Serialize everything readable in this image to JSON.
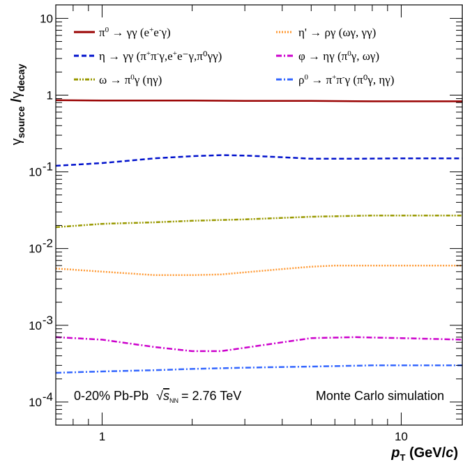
{
  "chart_data": {
    "type": "line",
    "xscale": "log",
    "yscale": "log",
    "xlim": [
      0.7,
      16
    ],
    "ylim": [
      5e-05,
      15
    ],
    "grid": false,
    "legend_placement": "top",
    "xlabel": {
      "main": "p",
      "sub": "T",
      "rest": " (GeV/",
      "italic": "c",
      "close": ")"
    },
    "ylabel": {
      "g1": "γ",
      "sub1": "source",
      "slash": " /",
      "g2": "γ",
      "sub2": "decay"
    },
    "x_ticks": [
      {
        "value": 1,
        "label": "1"
      },
      {
        "value": 10,
        "label": "10"
      }
    ],
    "y_ticks": [
      {
        "value": 10,
        "base": "10",
        "exp": ""
      },
      {
        "value": 1,
        "base": "1",
        "exp": ""
      },
      {
        "value": 0.1,
        "base": "10",
        "exp": "-1"
      },
      {
        "value": 0.01,
        "base": "10",
        "exp": "-2"
      },
      {
        "value": 0.001,
        "base": "10",
        "exp": "-3"
      },
      {
        "value": 0.0001,
        "base": "10",
        "exp": "-4"
      }
    ],
    "series": [
      {
        "name": "π⁰ → γγ (e⁺e⁻γ)",
        "color": "#990000",
        "dash": "solid",
        "x": [
          0.7,
          1,
          1.5,
          2,
          3,
          5,
          8,
          12,
          16
        ],
        "values": [
          0.86,
          0.85,
          0.85,
          0.85,
          0.84,
          0.84,
          0.83,
          0.83,
          0.83
        ]
      },
      {
        "name": "η → γγ (π⁺π⁻γ,e⁺e⁻γ,π⁰γγ)",
        "color": "#0011cc",
        "dash": "dashed",
        "x": [
          0.7,
          1,
          1.5,
          2,
          2.5,
          3,
          4,
          5,
          7,
          10,
          16
        ],
        "values": [
          0.12,
          0.13,
          0.15,
          0.16,
          0.165,
          0.163,
          0.155,
          0.148,
          0.148,
          0.15,
          0.15
        ]
      },
      {
        "name": "ω → π⁰γ (ηγ)",
        "color": "#999900",
        "dash": "dashdotdot",
        "x": [
          0.7,
          1,
          1.5,
          2,
          3,
          5,
          8,
          12,
          16
        ],
        "values": [
          0.019,
          0.021,
          0.022,
          0.023,
          0.024,
          0.026,
          0.027,
          0.027,
          0.027
        ]
      },
      {
        "name": "η' → ργ (ωγ, γγ)",
        "color": "#ff9933",
        "dash": "dotted",
        "x": [
          0.7,
          1,
          1.5,
          2,
          2.5,
          3,
          4,
          5,
          6,
          8,
          10,
          16
        ],
        "values": [
          0.0055,
          0.005,
          0.0045,
          0.0045,
          0.0046,
          0.0049,
          0.0054,
          0.0058,
          0.006,
          0.006,
          0.006,
          0.006
        ]
      },
      {
        "name": "φ → ηγ (π⁰γ, ωγ)",
        "color": "#cc00cc",
        "dash": "dashdot",
        "x": [
          0.7,
          1,
          1.5,
          2,
          2.5,
          3,
          4,
          5,
          7,
          10,
          16
        ],
        "values": [
          0.0007,
          0.00065,
          0.00052,
          0.00046,
          0.00046,
          0.00051,
          0.0006,
          0.00068,
          0.0007,
          0.00068,
          0.00065
        ]
      },
      {
        "name": "ρ⁰ → π⁺π⁻γ (π⁰γ, ηγ)",
        "color": "#3366ff",
        "dash": "dashdot",
        "x": [
          0.7,
          1,
          1.5,
          2,
          3,
          5,
          8,
          12,
          16
        ],
        "values": [
          0.00024,
          0.00025,
          0.00026,
          0.00027,
          0.00028,
          0.00029,
          0.0003,
          0.0003,
          0.0003
        ]
      }
    ],
    "legend": [
      {
        "prefix": "π",
        "sup1": "0",
        "mid": " → γγ (e",
        "sup2": "+",
        "mid2": "e",
        "sup3": "-",
        "tail": "γ)"
      },
      {
        "text": "η' → ργ (ωγ, γγ)"
      },
      {
        "prefix": "η → γγ (π",
        "sup1": "+",
        "mid": "π",
        "sup2": "-",
        "mid2": "γ,e",
        "sup3": "+",
        "tail": "e⁻γ,π⁰γγ)"
      },
      {
        "prefix": "φ → ηγ (π",
        "sup1": "0",
        "mid": "γ, ωγ)",
        "sup2": "",
        "mid2": "",
        "sup3": "",
        "tail": ""
      },
      {
        "prefix": "ω → π",
        "sup1": "0",
        "mid": "γ (ηγ)",
        "sup2": "",
        "mid2": "",
        "sup3": "",
        "tail": ""
      },
      {
        "prefix": "ρ",
        "sup1": "0",
        "mid": " → π",
        "sup2": "+",
        "mid2": "π",
        "sup3": "-",
        "tail": "γ (π⁰γ, ηγ)"
      }
    ],
    "annotations": {
      "system": "0-20% Pb-Pb",
      "sqrt": "√",
      "snn_s": "s",
      "snn_sub": "NN",
      "energy": "= 2.76 TeV",
      "simulation": "Monte Carlo simulation"
    }
  }
}
